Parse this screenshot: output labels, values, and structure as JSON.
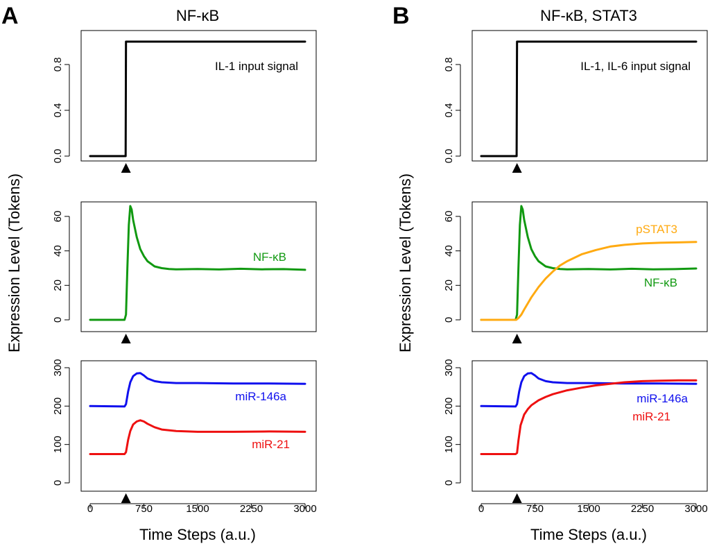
{
  "figure": {
    "ylabel": "Expression Level (Tokens)",
    "xlabel": "Time Steps (a.u.)",
    "x_ticks": [
      "0",
      "750",
      "1500",
      "2250",
      "3000"
    ]
  },
  "chart_data": [
    {
      "panel": "A",
      "title": "NF-κB",
      "type": "line",
      "ylabel": "Expression Level (Tokens)",
      "xlabel": "Time Steps (a.u.)",
      "xlim": [
        0,
        3000
      ],
      "stimulus_at": 500,
      "subplots": [
        {
          "ylim": [
            0,
            1
          ],
          "y_ticks": [
            "0.0",
            "0.4",
            "0.8"
          ],
          "series": [
            {
              "name": "IL-1 input signal",
              "color": "#000000",
              "label": "IL-1 input signal",
              "x": [
                0,
                495,
                500,
                3000
              ],
              "values": [
                0,
                0,
                1,
                1
              ]
            }
          ]
        },
        {
          "ylim": [
            0,
            66
          ],
          "y_ticks": [
            "0",
            "20",
            "40",
            "60"
          ],
          "series": [
            {
              "name": "NF-κB",
              "color": "#119911",
              "label": "NF-κB",
              "x": [
                0,
                480,
                500,
                520,
                540,
                560,
                580,
                600,
                650,
                700,
                750,
                800,
                900,
                1000,
                1100,
                1200,
                1500,
                1800,
                2100,
                2400,
                2700,
                3000
              ],
              "values": [
                0,
                0,
                3,
                30,
                55,
                66,
                64,
                58,
                48,
                41,
                37,
                34,
                31,
                30,
                29.5,
                29.3,
                29.5,
                29.2,
                29.6,
                29.3,
                29.4,
                29.0
              ]
            }
          ]
        },
        {
          "ylim": [
            0,
            300
          ],
          "y_ticks": [
            "0",
            "100",
            "200",
            "300"
          ],
          "series": [
            {
              "name": "miR-146a",
              "color": "#1010ee",
              "label": "miR-146a",
              "x": [
                0,
                480,
                500,
                530,
                560,
                600,
                650,
                700,
                750,
                800,
                900,
                1000,
                1200,
                1500,
                2000,
                2500,
                3000
              ],
              "values": [
                200,
                199,
                205,
                238,
                262,
                278,
                285,
                286,
                280,
                272,
                265,
                262,
                260,
                260,
                259,
                259,
                258
              ]
            },
            {
              "name": "miR-21",
              "color": "#ee1010",
              "label": "miR-21",
              "x": [
                0,
                480,
                500,
                530,
                560,
                600,
                650,
                700,
                750,
                800,
                900,
                1000,
                1200,
                1500,
                2000,
                2500,
                3000
              ],
              "values": [
                75,
                75,
                80,
                112,
                135,
                152,
                160,
                163,
                160,
                154,
                145,
                139,
                135,
                133,
                133,
                134,
                133
              ]
            }
          ]
        }
      ]
    },
    {
      "panel": "B",
      "title": "NF-κB, STAT3",
      "type": "line",
      "ylabel": "Expression Level (Tokens)",
      "xlabel": "Time Steps (a.u.)",
      "xlim": [
        0,
        3000
      ],
      "stimulus_at": 500,
      "subplots": [
        {
          "ylim": [
            0,
            1
          ],
          "y_ticks": [
            "0.0",
            "0.4",
            "0.8"
          ],
          "series": [
            {
              "name": "IL-1, IL-6 input signal",
              "color": "#000000",
              "label": "IL-1, IL-6 input signal",
              "x": [
                0,
                495,
                500,
                3000
              ],
              "values": [
                0,
                0,
                1,
                1
              ]
            }
          ]
        },
        {
          "ylim": [
            0,
            66
          ],
          "y_ticks": [
            "0",
            "20",
            "40",
            "60"
          ],
          "series": [
            {
              "name": "NF-κB",
              "color": "#119911",
              "label": "NF-κB",
              "x": [
                0,
                480,
                500,
                520,
                540,
                560,
                580,
                600,
                650,
                700,
                750,
                800,
                900,
                1000,
                1100,
                1200,
                1500,
                1800,
                2100,
                2400,
                2700,
                3000
              ],
              "values": [
                0,
                0,
                3,
                30,
                55,
                66,
                64,
                58,
                48,
                41,
                37,
                34,
                31,
                30,
                29.5,
                29.3,
                29.5,
                29.2,
                29.6,
                29.3,
                29.4,
                29.8
              ]
            },
            {
              "name": "pSTAT3",
              "color": "#ffaa11",
              "label": "pSTAT3",
              "x": [
                0,
                490,
                520,
                560,
                600,
                700,
                800,
                900,
                1000,
                1100,
                1200,
                1400,
                1600,
                1800,
                2000,
                2250,
                2500,
                2750,
                3000
              ],
              "values": [
                0,
                0,
                1,
                3,
                6,
                13,
                19,
                24,
                28,
                31.5,
                34,
                38,
                40.5,
                42.5,
                43.5,
                44.3,
                44.7,
                44.9,
                45.2
              ]
            }
          ]
        },
        {
          "ylim": [
            0,
            300
          ],
          "y_ticks": [
            "0",
            "100",
            "200",
            "300"
          ],
          "series": [
            {
              "name": "miR-146a",
              "color": "#1010ee",
              "label": "miR-146a",
              "x": [
                0,
                480,
                500,
                530,
                560,
                600,
                650,
                700,
                750,
                800,
                900,
                1000,
                1200,
                1500,
                2000,
                2500,
                3000
              ],
              "values": [
                200,
                199,
                205,
                238,
                262,
                278,
                285,
                286,
                280,
                272,
                265,
                262,
                260,
                260,
                259,
                259,
                258
              ]
            },
            {
              "name": "miR-21",
              "color": "#ee1010",
              "label": "miR-21",
              "x": [
                0,
                480,
                500,
                520,
                550,
                600,
                650,
                700,
                800,
                900,
                1000,
                1200,
                1400,
                1600,
                1800,
                2000,
                2250,
                2500,
                2750,
                3000
              ],
              "values": [
                75,
                75,
                78,
                110,
                150,
                178,
                192,
                202,
                215,
                224,
                231,
                241,
                248,
                254,
                258,
                262,
                265,
                266,
                267,
                267
              ]
            }
          ]
        }
      ]
    }
  ]
}
